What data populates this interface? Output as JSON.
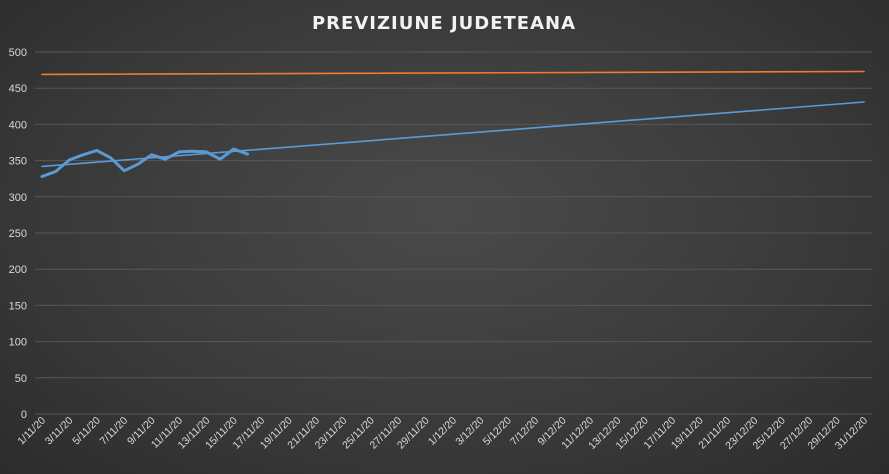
{
  "chart_data": {
    "type": "line",
    "title": "PREVIZIUNE JUDETEANA",
    "xlabel": "",
    "ylabel": "",
    "ylim": [
      0,
      500
    ],
    "y_ticks": [
      "0",
      "50",
      "100",
      "150",
      "200",
      "250",
      "300",
      "350",
      "400",
      "450",
      "500"
    ],
    "x_ticks": [
      "1/11/20",
      "3/11/20",
      "5/11/20",
      "7/11/20",
      "9/11/20",
      "11/11/20",
      "13/11/20",
      "15/11/20",
      "17/11/20",
      "19/11/20",
      "21/11/20",
      "23/11/20",
      "25/11/20",
      "27/11/20",
      "29/11/20",
      "1/12/20",
      "3/12/20",
      "5/12/20",
      "7/12/20",
      "9/12/20",
      "11/12/20",
      "13/12/20",
      "15/12/20",
      "17/11/20",
      "19/11/20",
      "21/11/20",
      "23/12/20",
      "25/12/20",
      "27/12/20",
      "29/12/20",
      "31/12/20"
    ],
    "grid": true,
    "legend": "none",
    "series": [
      {
        "color": "#5b9bd5",
        "style": "thick",
        "x": [
          "1/11/20",
          "2/11/20",
          "3/11/20",
          "4/11/20",
          "5/11/20",
          "6/11/20",
          "7/11/20",
          "8/11/20",
          "9/11/20",
          "10/11/20",
          "11/11/20",
          "12/11/20",
          "13/11/20",
          "14/11/20",
          "15/11/20",
          "16/11/20"
        ],
        "values": [
          328,
          335,
          351,
          358,
          364,
          354,
          336,
          345,
          358,
          352,
          362,
          363,
          362,
          352,
          366,
          359
        ]
      },
      {
        "color": "#5b9bd5",
        "style": "thin",
        "x": [
          "1/11/20",
          "31/12/20"
        ],
        "values": [
          342,
          431
        ]
      },
      {
        "color": "#ed7d31",
        "style": "thin",
        "x": [
          "1/11/20",
          "31/12/20"
        ],
        "values": [
          469,
          473
        ]
      }
    ]
  }
}
